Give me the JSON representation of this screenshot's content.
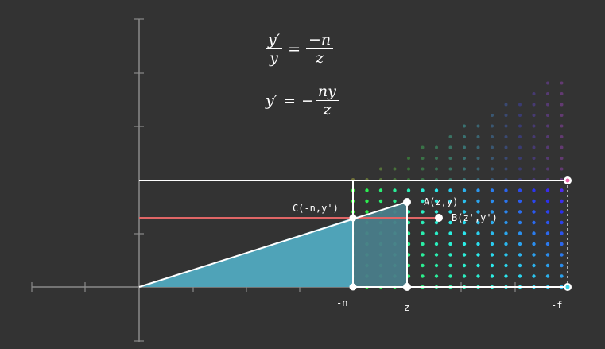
{
  "colors": {
    "background": "#333333",
    "axis": "#8a8a8a",
    "white_line": "#ffffff",
    "red_line": "#e06666",
    "triangle_fill": "#4fa3b8",
    "quad_fill": "#4a7d8a"
  },
  "equations": {
    "eq1": {
      "lhs_num": "y′",
      "lhs_den": "y",
      "equals": "=",
      "rhs_num": "−n",
      "rhs_den": "z"
    },
    "eq2": {
      "lhs": "y′",
      "equals": "=",
      "sign": "−",
      "rhs_num": "ny",
      "rhs_den": "z"
    }
  },
  "labels": {
    "point_c": "C(-n,y')",
    "point_a": "A(z,y)",
    "point_b": "B(z',y')",
    "tick_n": "-n",
    "tick_z": "z",
    "tick_f": "-f"
  }
}
